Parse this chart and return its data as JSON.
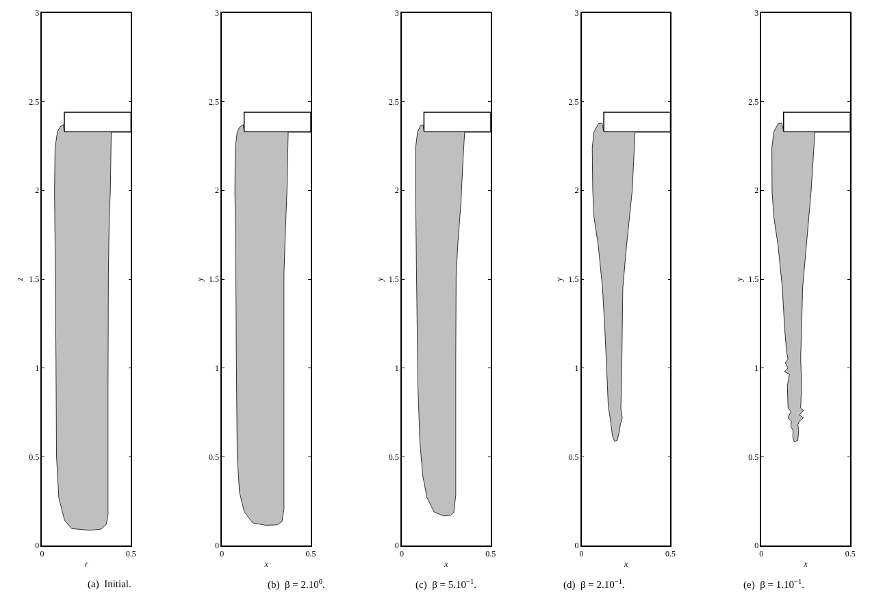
{
  "chart_data": [
    {
      "type": "area",
      "xlabel": "r",
      "ylabel": "z",
      "xlim": [
        0,
        0.5
      ],
      "ylim": [
        0,
        3
      ],
      "xticks": [
        0,
        0.5
      ],
      "yticks": [
        0,
        0.5,
        1,
        1.5,
        2,
        2.5,
        3
      ],
      "annotations": [
        "(a)  Initial."
      ],
      "series": [
        {
          "type": "area",
          "color": "#ffffff",
          "x": [
            0.125,
            0.5,
            0.5,
            0.125,
            0.125
          ],
          "values": [
            2.33,
            2.33,
            2.44,
            2.44,
            2.33
          ]
        },
        {
          "type": "area",
          "color": "#bfbfbf",
          "x": [
            0.125,
            0.389,
            0.384,
            0.377,
            0.373,
            0.371,
            0.371,
            0.361,
            0.333,
            0.269,
            0.166,
            0.126,
            0.094,
            0.081,
            0.078,
            0.073,
            0.07,
            0.073,
            0.086,
            0.102,
            0.12,
            0.125
          ],
          "values": [
            2.33,
            2.33,
            2.0,
            1.81,
            1.53,
            0.9,
            0.175,
            0.12,
            0.093,
            0.087,
            0.096,
            0.144,
            0.27,
            0.506,
            1.06,
            1.69,
            2.0,
            2.24,
            2.33,
            2.36,
            2.37,
            2.33
          ]
        }
      ]
    },
    {
      "type": "area",
      "xlabel": "x",
      "ylabel": "y",
      "xlim": [
        0,
        0.5
      ],
      "ylim": [
        0,
        3
      ],
      "xticks": [
        0,
        0.5
      ],
      "yticks": [
        0,
        0.5,
        1,
        1.5,
        2,
        2.5,
        3
      ],
      "annotations": [
        "(b)  β = 2.10$^{0}$."
      ],
      "series": [
        {
          "type": "area",
          "color": "#ffffff",
          "x": [
            0.125,
            0.5,
            0.5,
            0.125,
            0.125
          ],
          "values": [
            2.33,
            2.33,
            2.44,
            2.44,
            2.33
          ]
        },
        {
          "type": "area",
          "color": "#bfbfbf",
          "x": [
            0.125,
            0.373,
            0.366,
            0.357,
            0.349,
            0.349,
            0.349,
            0.338,
            0.309,
            0.245,
            0.174,
            0.126,
            0.099,
            0.086,
            0.081,
            0.078,
            0.073,
            0.075,
            0.086,
            0.102,
            0.12,
            0.125
          ],
          "values": [
            2.33,
            2.33,
            2.0,
            1.77,
            1.53,
            0.9,
            0.206,
            0.136,
            0.117,
            0.115,
            0.128,
            0.19,
            0.3,
            0.506,
            1.06,
            1.61,
            2.0,
            2.24,
            2.33,
            2.36,
            2.37,
            2.33
          ]
        }
      ]
    },
    {
      "type": "area",
      "xlabel": "x",
      "ylabel": "y",
      "xlim": [
        0,
        0.5
      ],
      "ylim": [
        0,
        3
      ],
      "xticks": [
        0,
        0.5
      ],
      "yticks": [
        0,
        0.5,
        1,
        1.5,
        2,
        2.5,
        3
      ],
      "annotations": [
        "(c)  β = 5.10$^{−1}$."
      ],
      "series": [
        {
          "type": "area",
          "color": "#ffffff",
          "x": [
            0.125,
            0.5,
            0.5,
            0.125,
            0.125
          ],
          "values": [
            2.33,
            2.33,
            2.44,
            2.44,
            2.33
          ]
        },
        {
          "type": "area",
          "color": "#bfbfbf",
          "x": [
            0.125,
            0.354,
            0.344,
            0.333,
            0.317,
            0.306,
            0.304,
            0.304,
            0.293,
            0.277,
            0.237,
            0.182,
            0.142,
            0.118,
            0.102,
            0.091,
            0.083,
            0.078,
            0.078,
            0.089,
            0.105,
            0.12,
            0.125
          ],
          "values": [
            2.33,
            2.33,
            2.16,
            1.93,
            1.72,
            1.53,
            1.06,
            0.285,
            0.19,
            0.172,
            0.167,
            0.19,
            0.27,
            0.396,
            0.585,
            0.9,
            1.53,
            2.0,
            2.24,
            2.33,
            2.364,
            2.37,
            2.33
          ]
        }
      ]
    },
    {
      "type": "area",
      "xlabel": "x",
      "ylabel": "y",
      "xlim": [
        0,
        0.5
      ],
      "ylim": [
        0,
        3
      ],
      "xticks": [
        0,
        0.5
      ],
      "yticks": [
        0,
        0.5,
        1,
        1.5,
        2,
        2.5,
        3
      ],
      "annotations": [
        "(d)  β = 2.10$^{−1}$."
      ],
      "series": [
        {
          "type": "area",
          "color": "#ffffff",
          "x": [
            0.125,
            0.5,
            0.5,
            0.125,
            0.125
          ],
          "values": [
            2.33,
            2.33,
            2.44,
            2.44,
            2.33
          ]
        },
        {
          "type": "area",
          "color": "#bfbfbf",
          "x": [
            0.125,
            0.301,
            0.285,
            0.253,
            0.232,
            0.229,
            0.226,
            0.221,
            0.229,
            0.218,
            0.21,
            0.201,
            0.185,
            0.174,
            0.162,
            0.15,
            0.142,
            0.131,
            0.118,
            0.094,
            0.07,
            0.063,
            0.06,
            0.07,
            0.094,
            0.115,
            0.125
          ],
          "values": [
            2.33,
            2.33,
            2.0,
            1.69,
            1.45,
            1.22,
            0.98,
            0.775,
            0.72,
            0.68,
            0.633,
            0.593,
            0.588,
            0.617,
            0.71,
            0.79,
            0.98,
            1.22,
            1.45,
            1.69,
            1.85,
            2.0,
            2.24,
            2.33,
            2.375,
            2.38,
            2.33
          ]
        }
      ]
    },
    {
      "type": "area",
      "xlabel": "x",
      "ylabel": "y",
      "xlim": [
        0,
        0.5
      ],
      "ylim": [
        0,
        3
      ],
      "xticks": [
        0,
        0.5
      ],
      "yticks": [
        0,
        0.5,
        1,
        1.5,
        2,
        2.5,
        3
      ],
      "annotations": [
        "(e)  β = 1.10$^{−1}$."
      ],
      "series": [
        {
          "type": "area",
          "color": "#ffffff",
          "x": [
            0.125,
            0.5,
            0.5,
            0.125,
            0.125
          ],
          "values": [
            2.33,
            2.33,
            2.44,
            2.44,
            2.33
          ]
        },
        {
          "type": "area",
          "color": "#bfbfbf",
          "x": [
            0.125,
            0.301,
            0.28,
            0.253,
            0.232,
            0.226,
            0.221,
            0.226,
            0.221,
            0.237,
            0.213,
            0.237,
            0.213,
            0.205,
            0.21,
            0.205,
            0.185,
            0.177,
            0.178,
            0.166,
            0.169,
            0.15,
            0.166,
            0.15,
            0.146,
            0.158,
            0.131,
            0.15,
            0.134,
            0.15,
            0.142,
            0.131,
            0.118,
            0.094,
            0.07,
            0.06,
            0.059,
            0.07,
            0.094,
            0.115,
            0.125
          ],
          "values": [
            2.33,
            2.33,
            2.0,
            1.69,
            1.45,
            1.22,
            1.06,
            0.9,
            0.775,
            0.76,
            0.736,
            0.72,
            0.7,
            0.68,
            0.65,
            0.593,
            0.585,
            0.61,
            0.65,
            0.67,
            0.7,
            0.72,
            0.755,
            0.775,
            0.9,
            0.965,
            0.98,
            1.0,
            1.03,
            1.05,
            1.09,
            1.22,
            1.45,
            1.69,
            1.85,
            2.0,
            2.24,
            2.33,
            2.375,
            2.38,
            2.33
          ]
        }
      ]
    }
  ]
}
